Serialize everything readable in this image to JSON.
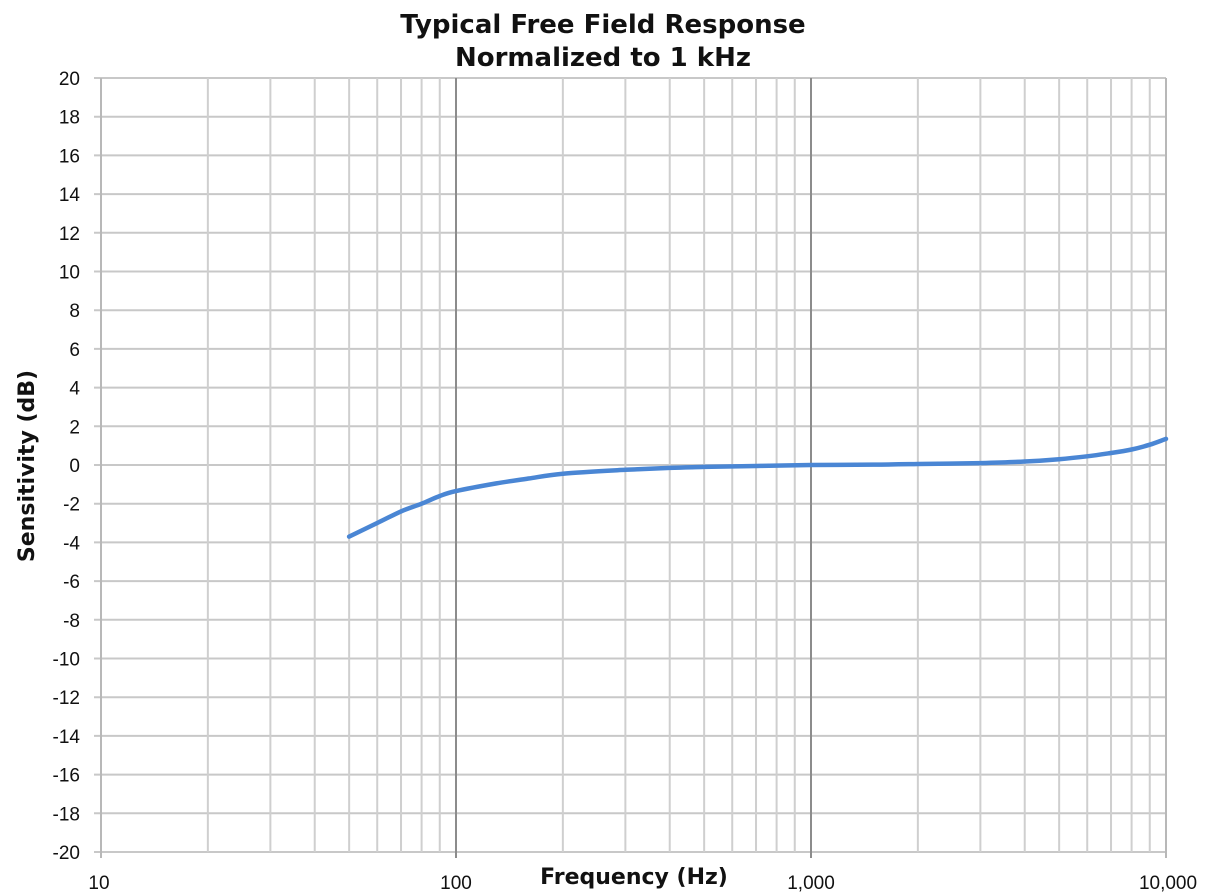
{
  "chart_data": {
    "type": "line",
    "title": "Typical Free Field Response",
    "subtitle": "Normalized to 1 kHz",
    "xlabel": "Frequency (Hz)",
    "ylabel": "Sensitivity (dB)",
    "xscale": "log",
    "xlim": [
      10,
      10000
    ],
    "ylim": [
      -20,
      20
    ],
    "xticks": [
      10,
      100,
      1000,
      10000
    ],
    "xtick_labels": [
      "10",
      "100",
      "1,000",
      "10,000"
    ],
    "yticks": [
      20,
      18,
      16,
      14,
      12,
      10,
      8,
      6,
      4,
      2,
      0,
      -2,
      -4,
      -6,
      -8,
      -10,
      -12,
      -14,
      -16,
      -18,
      -20
    ],
    "ytick_labels": [
      "20",
      "18",
      "16",
      "14",
      "12",
      "10",
      "8",
      "6",
      "4",
      "2",
      "0",
      "-2",
      "-4",
      "-6",
      "-8",
      "-10",
      "-12",
      "-14",
      "-16",
      "-18",
      "-20"
    ],
    "grid": true,
    "legend": false,
    "series": [
      {
        "color": "#4a86d4",
        "x": [
          50,
          60,
          70,
          80,
          90,
          100,
          130,
          160,
          200,
          300,
          400,
          500,
          700,
          1000,
          1500,
          2000,
          3000,
          4000,
          5000,
          6000,
          7000,
          8000,
          9000,
          10000
        ],
        "y": [
          -3.7,
          -3.0,
          -2.4,
          -2.0,
          -1.6,
          -1.35,
          -0.95,
          -0.7,
          -0.45,
          -0.25,
          -0.15,
          -0.1,
          -0.05,
          0.0,
          0.02,
          0.05,
          0.1,
          0.18,
          0.3,
          0.45,
          0.62,
          0.8,
          1.05,
          1.35
        ]
      }
    ]
  }
}
